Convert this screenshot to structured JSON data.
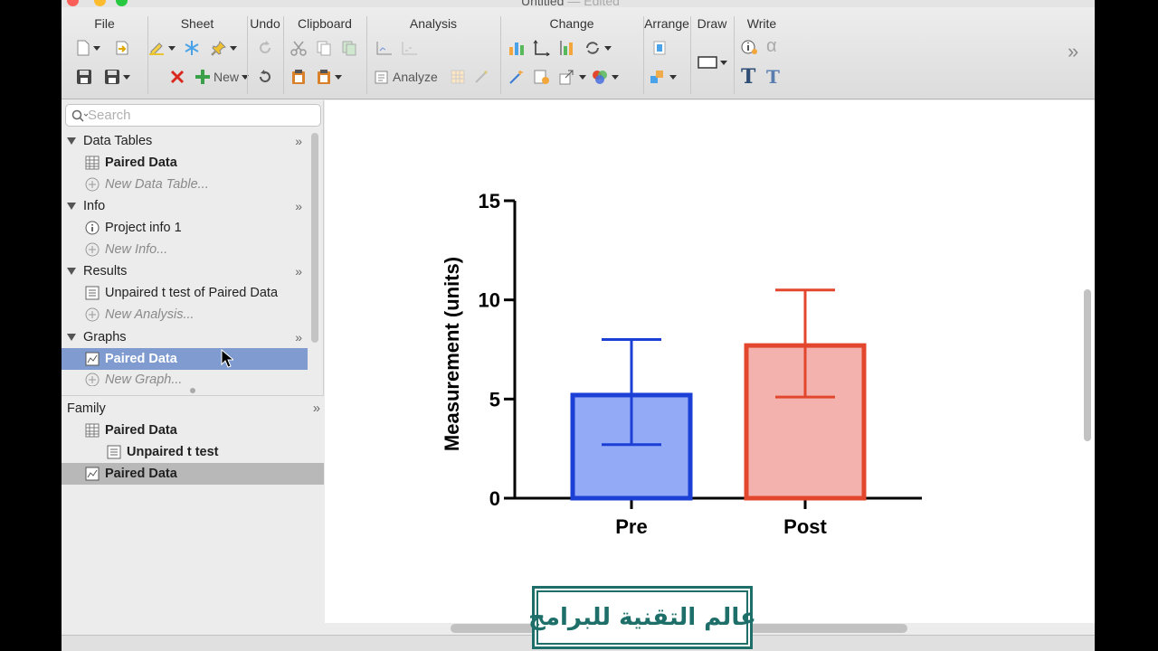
{
  "window": {
    "title": "Untitled",
    "title_state": "Edited"
  },
  "toolbar": {
    "groups": {
      "file": "File",
      "sheet": "Sheet",
      "undo": "Undo",
      "clipboard": "Clipboard",
      "analysis": "Analysis",
      "change": "Change",
      "arrange": "Arrange",
      "draw": "Draw",
      "write": "Write"
    },
    "new_label": "New",
    "analyze_label": "Analyze",
    "more_glyph": "»"
  },
  "sidebar": {
    "search_placeholder": "Search",
    "sections": {
      "data_tables": {
        "title": "Data Tables",
        "items": [
          {
            "label": "Paired Data"
          }
        ],
        "new_label": "New Data Table..."
      },
      "info": {
        "title": "Info",
        "items": [
          {
            "label": "Project info 1"
          }
        ],
        "new_label": "New Info..."
      },
      "results": {
        "title": "Results",
        "items": [
          {
            "label": "Unpaired t test of Paired Data"
          }
        ],
        "new_label": "New Analysis..."
      },
      "graphs": {
        "title": "Graphs",
        "items": [
          {
            "label": "Paired Data"
          }
        ],
        "new_label": "New Graph..."
      }
    },
    "family": {
      "title": "Family",
      "items": [
        {
          "label": "Paired Data"
        },
        {
          "label": "Unpaired t test"
        },
        {
          "label": "Paired Data"
        }
      ]
    }
  },
  "chart_data": {
    "type": "bar",
    "title": "",
    "xlabel": "",
    "ylabel": "Measurement (units)",
    "ylim": [
      0,
      15
    ],
    "yticks": [
      "0",
      "5",
      "10",
      "15"
    ],
    "categories": [
      "Pre",
      "Post"
    ],
    "values": [
      5.2,
      7.7
    ],
    "error_low": [
      2.7,
      5.1
    ],
    "error_high": [
      8.0,
      10.5
    ],
    "fill_colors": [
      "#93aaf7",
      "#f4b2ae"
    ],
    "edge_colors": [
      "#1c3fd6",
      "#e2472e"
    ],
    "grid": false
  },
  "watermark": {
    "text": "عالم التقنية للبرامج"
  }
}
